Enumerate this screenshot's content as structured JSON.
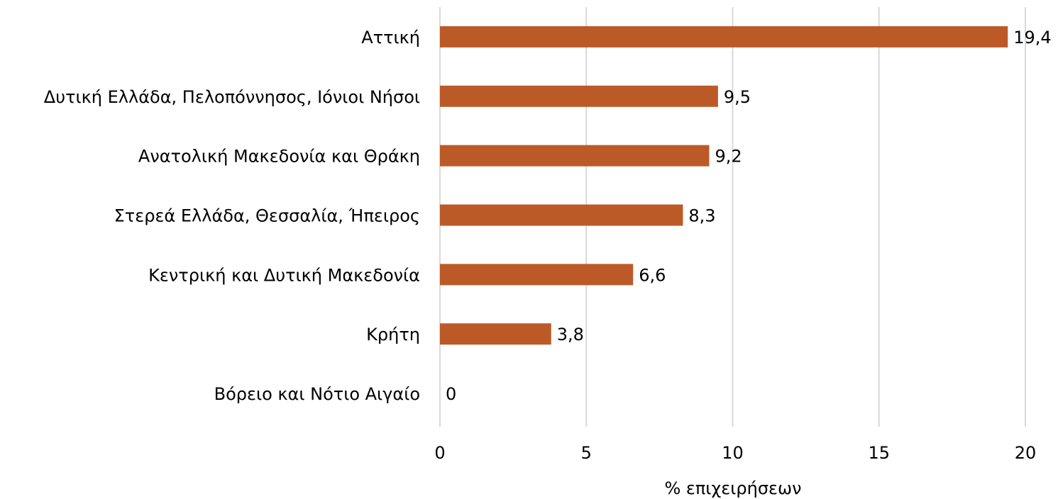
{
  "chart_data": {
    "type": "bar",
    "orientation": "horizontal",
    "categories": [
      "Αττική",
      "Δυτική Ελλάδα, Πελοπόννησος, Ιόνιοι Νήσοι",
      "Ανατολική Μακεδονία και Θράκη",
      "Στερεά Ελλάδα, Θεσσαλία, Ήπειρος",
      "Κεντρική και Δυτική Μακεδονία",
      "Κρήτη",
      "Βόρειο και Νότιο Αιγαίο"
    ],
    "values": [
      19.4,
      9.5,
      9.2,
      8.3,
      6.6,
      3.8,
      0
    ],
    "value_labels": [
      "19,4",
      "9,5",
      "9,2",
      "8,3",
      "6,6",
      "3,8",
      "0"
    ],
    "color": "#bc5a27",
    "xlabel": "% επιχειρήσεων",
    "xlim": [
      0,
      20
    ],
    "xticks": [
      0,
      5,
      10,
      15,
      20
    ],
    "grid": true
  }
}
